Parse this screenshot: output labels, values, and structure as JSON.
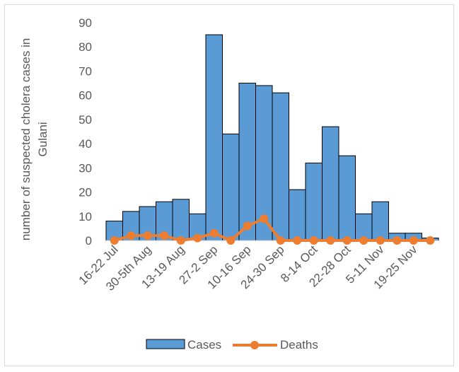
{
  "chart_data": {
    "type": "bar",
    "ylabel_lines": [
      "number of suspected cholera cases in",
      "Gulani"
    ],
    "ylim": [
      0,
      90
    ],
    "yticks": [
      0,
      10,
      20,
      30,
      40,
      50,
      60,
      70,
      80,
      90
    ],
    "categories": [
      "16-22 Jul",
      "",
      "30-5th Aug",
      "",
      "13-19 Aug",
      "",
      "27-2 Sep",
      "",
      "10-16 Sep",
      "",
      "24-30 Sep",
      "",
      "8-14 Oct",
      "",
      "22-28 Oct",
      "",
      "5-11 Nov",
      "",
      "19-25 Nov",
      ""
    ],
    "series": [
      {
        "name": "Cases",
        "type": "bar",
        "color": "#5b9bd5",
        "values": [
          8,
          12,
          14,
          16,
          17,
          11,
          85,
          44,
          65,
          64,
          61,
          21,
          32,
          47,
          35,
          11,
          16,
          3,
          3,
          1
        ]
      },
      {
        "name": "Deaths",
        "type": "line",
        "color": "#ed7d31",
        "values": [
          0,
          2,
          2,
          2,
          0,
          1,
          3,
          0,
          6,
          9,
          0,
          0,
          0,
          0,
          0,
          0,
          0,
          0,
          0,
          0
        ]
      }
    ],
    "legend_position": "bottom",
    "grid": false
  }
}
